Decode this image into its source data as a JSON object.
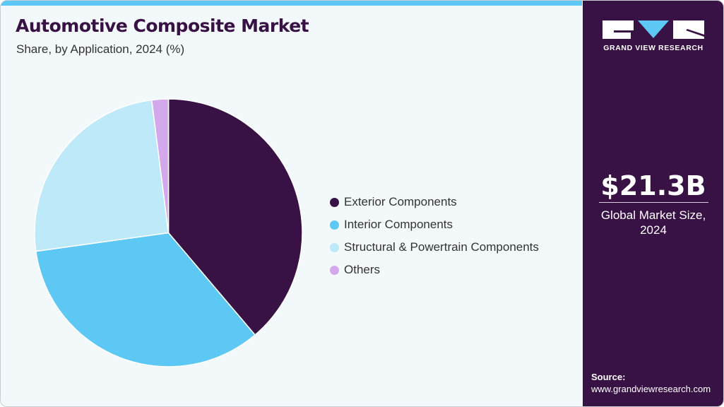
{
  "header": {
    "title": "Automotive Composite Market",
    "subtitle": "Share, by Application, 2024 (%)"
  },
  "legend": {
    "items": [
      {
        "label": "Exterior Components",
        "color": "#391245"
      },
      {
        "label": "Interior Components",
        "color": "#5ec8f5"
      },
      {
        "label": "Structural & Powertrain Components",
        "color": "#bde9f9"
      },
      {
        "label": "Others",
        "color": "#d4a9eb"
      }
    ]
  },
  "sidebar": {
    "brand": "GRAND VIEW RESEARCH",
    "market_value": "$21.3B",
    "market_label_line1": "Global Market Size,",
    "market_label_line2": "2024",
    "source_label": "Source:",
    "source_url": "www.grandviewresearch.com"
  },
  "colors": {
    "accent": "#5ec8f5",
    "brand_dark": "#391245",
    "background": "#f3f8fb"
  },
  "chart_data": {
    "type": "pie",
    "title": "Automotive Composite Market",
    "subtitle": "Share, by Application, 2024 (%)",
    "categories": [
      "Exterior Components",
      "Interior Components",
      "Structural & Powertrain Components",
      "Others"
    ],
    "values": [
      38.8,
      34.0,
      25.2,
      2.0
    ],
    "colors": [
      "#391245",
      "#5ec8f5",
      "#bde9f9",
      "#d4a9eb"
    ],
    "start_angle_deg": 0,
    "direction": "clockwise",
    "legend_position": "right"
  }
}
